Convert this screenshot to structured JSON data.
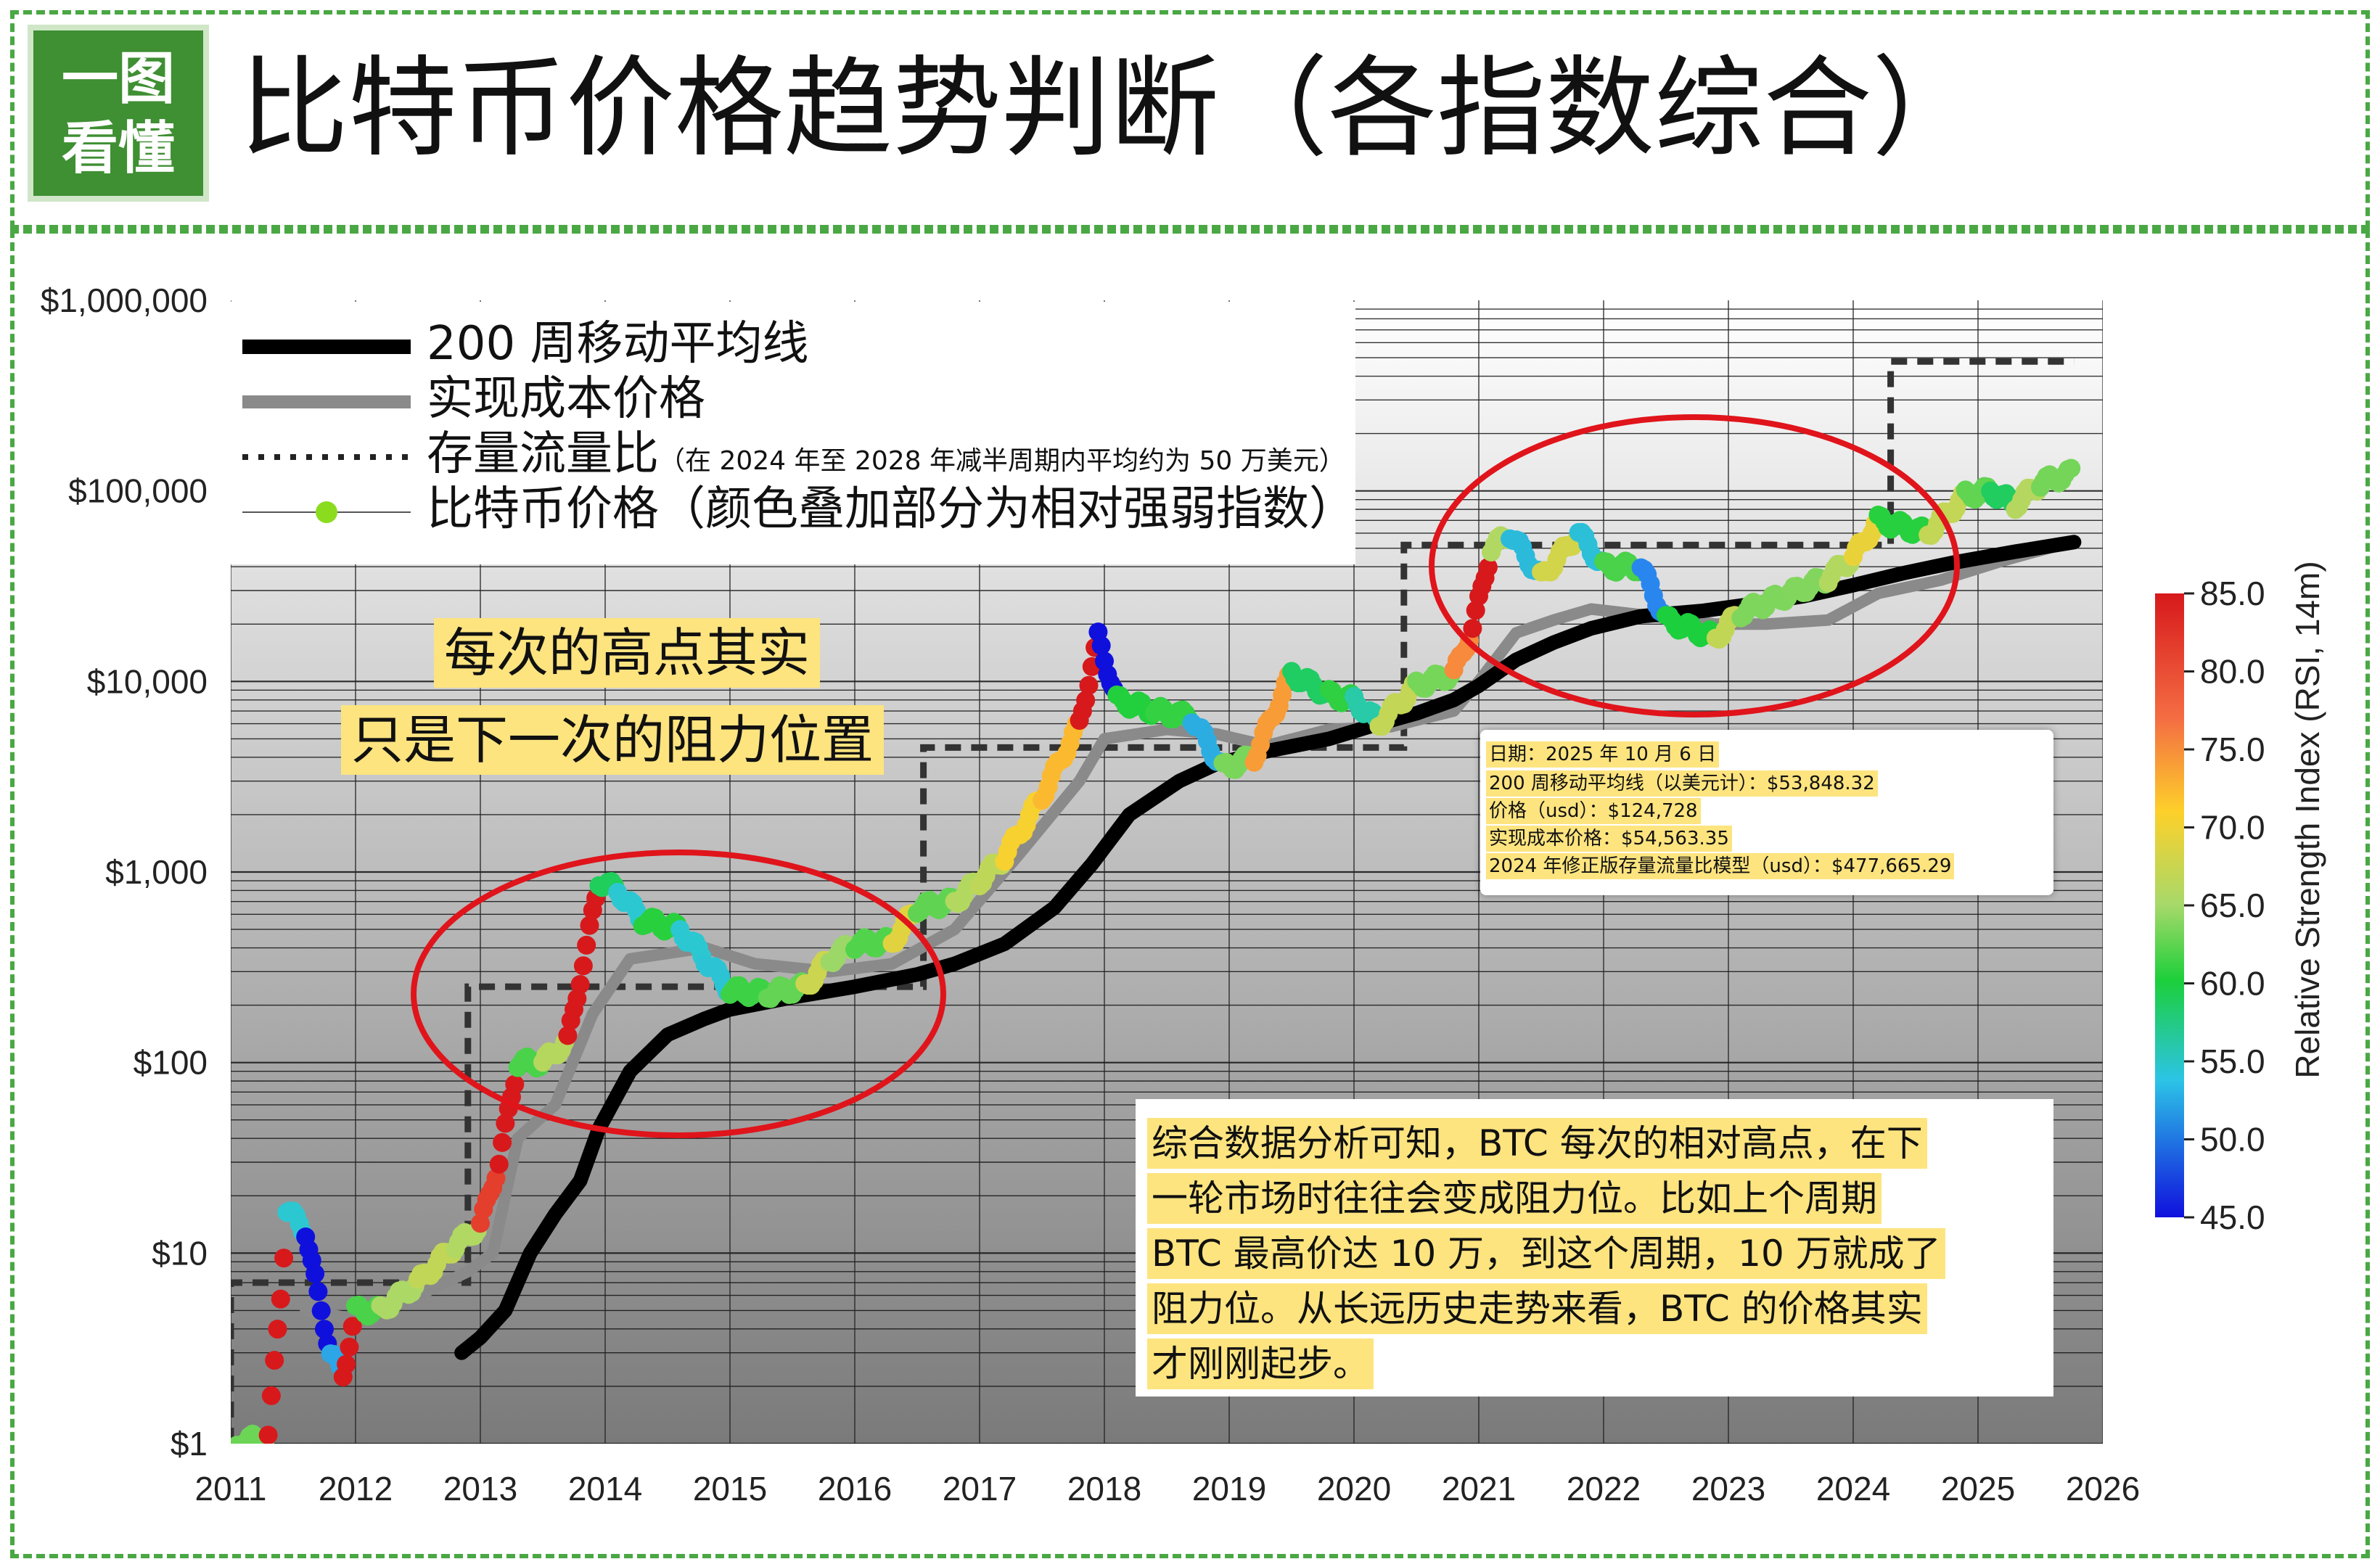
{
  "logo": {
    "line1": "一图",
    "line2": "看懂"
  },
  "header": {
    "title": "比特币价格趋势判断（各指数综合）"
  },
  "chart_data": {
    "type": "line",
    "y_scale": "log",
    "ylim": [
      1,
      1000000
    ],
    "xlim": [
      2011,
      2026
    ],
    "grid": true,
    "y_ticks": [
      {
        "v": 1,
        "label": "$1"
      },
      {
        "v": 10,
        "label": "$10"
      },
      {
        "v": 100,
        "label": "$100"
      },
      {
        "v": 1000,
        "label": "$1,000"
      },
      {
        "v": 10000,
        "label": "$10,000"
      },
      {
        "v": 100000,
        "label": "$100,000"
      },
      {
        "v": 1000000,
        "label": "$1,000,000"
      }
    ],
    "x_ticks": [
      "2011",
      "2012",
      "2013",
      "2014",
      "2015",
      "2016",
      "2017",
      "2018",
      "2019",
      "2020",
      "2021",
      "2022",
      "2023",
      "2024",
      "2025",
      "2026"
    ],
    "legend": [
      {
        "key": "ma200w",
        "label": "200 周移动平均线",
        "note": ""
      },
      {
        "key": "realized",
        "label": "实现成本价格",
        "note": ""
      },
      {
        "key": "s2f",
        "label": "存量流量比",
        "note": "（在 2024 年至 2028 年减半周期内平均约为 50 万美元）"
      },
      {
        "key": "price",
        "label": "比特币价格（颜色叠加部分为相对强弱指数）",
        "note": ""
      }
    ],
    "series": [
      {
        "name": "200 周移动平均线",
        "color": "#000000",
        "points": [
          [
            2012.85,
            3
          ],
          [
            2013.0,
            3.6
          ],
          [
            2013.2,
            5
          ],
          [
            2013.4,
            10
          ],
          [
            2013.6,
            16
          ],
          [
            2013.8,
            24
          ],
          [
            2013.95,
            45
          ],
          [
            2014.2,
            90
          ],
          [
            2014.5,
            140
          ],
          [
            2014.8,
            170
          ],
          [
            2015.0,
            190
          ],
          [
            2015.5,
            220
          ],
          [
            2016.0,
            250
          ],
          [
            2016.5,
            290
          ],
          [
            2016.8,
            330
          ],
          [
            2017.2,
            420
          ],
          [
            2017.6,
            650
          ],
          [
            2017.9,
            1100
          ],
          [
            2018.2,
            2000
          ],
          [
            2018.6,
            3000
          ],
          [
            2018.9,
            3700
          ],
          [
            2019.3,
            4300
          ],
          [
            2019.8,
            5000
          ],
          [
            2020.2,
            6000
          ],
          [
            2020.5,
            6800
          ],
          [
            2020.8,
            8000
          ],
          [
            2021.0,
            9500
          ],
          [
            2021.3,
            13000
          ],
          [
            2021.6,
            16000
          ],
          [
            2021.9,
            19000
          ],
          [
            2022.3,
            22000
          ],
          [
            2022.8,
            23500
          ],
          [
            2023.2,
            25500
          ],
          [
            2023.6,
            28000
          ],
          [
            2024.0,
            32000
          ],
          [
            2024.4,
            37000
          ],
          [
            2024.8,
            42000
          ],
          [
            2025.3,
            48000
          ],
          [
            2025.77,
            53848
          ]
        ]
      },
      {
        "name": "实现成本价格",
        "color": "#8a8a8a",
        "points": [
          [
            2011.6,
            5
          ],
          [
            2012.0,
            4.5
          ],
          [
            2012.5,
            6
          ],
          [
            2012.9,
            8
          ],
          [
            2013.1,
            10
          ],
          [
            2013.3,
            40
          ],
          [
            2013.6,
            60
          ],
          [
            2013.9,
            180
          ],
          [
            2014.2,
            350
          ],
          [
            2014.8,
            400
          ],
          [
            2015.2,
            330
          ],
          [
            2015.8,
            300
          ],
          [
            2016.3,
            330
          ],
          [
            2016.8,
            500
          ],
          [
            2017.3,
            1200
          ],
          [
            2017.8,
            3000
          ],
          [
            2018.0,
            5000
          ],
          [
            2018.5,
            5600
          ],
          [
            2018.9,
            5300
          ],
          [
            2019.3,
            4600
          ],
          [
            2019.8,
            5600
          ],
          [
            2020.3,
            5800
          ],
          [
            2020.8,
            7000
          ],
          [
            2021.0,
            10000
          ],
          [
            2021.3,
            18000
          ],
          [
            2021.6,
            21000
          ],
          [
            2021.9,
            24000
          ],
          [
            2022.4,
            22000
          ],
          [
            2022.9,
            20000
          ],
          [
            2023.3,
            20000
          ],
          [
            2023.8,
            21000
          ],
          [
            2024.2,
            29000
          ],
          [
            2024.7,
            34000
          ],
          [
            2025.2,
            43000
          ],
          [
            2025.77,
            54563
          ]
        ]
      },
      {
        "name": "存量流量比",
        "color": "#333333",
        "points": [
          [
            2011.0,
            1
          ],
          [
            2011.0,
            7
          ],
          [
            2012.9,
            7
          ],
          [
            2012.9,
            250
          ],
          [
            2016.55,
            250
          ],
          [
            2016.55,
            4500
          ],
          [
            2020.4,
            4500
          ],
          [
            2020.4,
            52000
          ],
          [
            2024.3,
            52000
          ],
          [
            2024.3,
            477665
          ],
          [
            2025.77,
            477665
          ]
        ]
      },
      {
        "name": "比特币价格",
        "color_scale": "RSI 14m",
        "points": [
          [
            2011.05,
            1
          ],
          [
            2011.3,
            1.1
          ],
          [
            2011.4,
            6
          ],
          [
            2011.45,
            17
          ],
          [
            2011.6,
            13
          ],
          [
            2011.7,
            6
          ],
          [
            2011.8,
            3
          ],
          [
            2011.9,
            2.3
          ],
          [
            2012.0,
            5
          ],
          [
            2012.2,
            5
          ],
          [
            2012.5,
            7
          ],
          [
            2012.8,
            11
          ],
          [
            2013.0,
            14
          ],
          [
            2013.15,
            30
          ],
          [
            2013.3,
            100
          ],
          [
            2013.5,
            100
          ],
          [
            2013.7,
            130
          ],
          [
            2013.85,
            400
          ],
          [
            2013.95,
            900
          ],
          [
            2014.1,
            800
          ],
          [
            2014.3,
            560
          ],
          [
            2014.6,
            500
          ],
          [
            2014.8,
            350
          ],
          [
            2015.0,
            240
          ],
          [
            2015.3,
            230
          ],
          [
            2015.6,
            250
          ],
          [
            2015.8,
            350
          ],
          [
            2016.0,
            420
          ],
          [
            2016.3,
            430
          ],
          [
            2016.5,
            650
          ],
          [
            2016.8,
            700
          ],
          [
            2017.0,
            900
          ],
          [
            2017.2,
            1200
          ],
          [
            2017.5,
            2500
          ],
          [
            2017.8,
            6000
          ],
          [
            2017.95,
            17000
          ],
          [
            2018.1,
            8000
          ],
          [
            2018.4,
            7000
          ],
          [
            2018.7,
            6500
          ],
          [
            2018.95,
            3500
          ],
          [
            2019.2,
            4000
          ],
          [
            2019.5,
            11000
          ],
          [
            2019.8,
            8500
          ],
          [
            2020.0,
            8000
          ],
          [
            2020.2,
            6000
          ],
          [
            2020.5,
            9500
          ],
          [
            2020.8,
            11000
          ],
          [
            2020.95,
            19000
          ],
          [
            2021.1,
            50000
          ],
          [
            2021.25,
            60000
          ],
          [
            2021.5,
            35000
          ],
          [
            2021.8,
            60000
          ],
          [
            2022.0,
            40000
          ],
          [
            2022.3,
            40000
          ],
          [
            2022.5,
            21000
          ],
          [
            2022.9,
            17000
          ],
          [
            2023.1,
            23000
          ],
          [
            2023.5,
            29000
          ],
          [
            2023.8,
            35000
          ],
          [
            2024.0,
            45000
          ],
          [
            2024.2,
            70000
          ],
          [
            2024.6,
            60000
          ],
          [
            2024.9,
            95000
          ],
          [
            2025.1,
            100000
          ],
          [
            2025.3,
            85000
          ],
          [
            2025.5,
            110000
          ],
          [
            2025.77,
            124728
          ]
        ]
      }
    ],
    "colorbar": {
      "title": "Relative Strength Index (RSI, 14m)",
      "min": 45,
      "max": 85,
      "ticks": [
        "85.0",
        "80.0",
        "75.0",
        "70.0",
        "65.0",
        "60.0",
        "55.0",
        "50.0",
        "45.0"
      ]
    }
  },
  "annotations": {
    "highlight1": "每次的高点其实",
    "highlight2": "只是下一次的阻力位置"
  },
  "tooltip": {
    "date": "日期：2025 年 10 月 6 日",
    "ma200": "200 周移动平均线（以美元计）：$53,848.32",
    "price": "价格（usd）：$124,728",
    "realized": "实现成本价格：$54,563.35",
    "s2f": "2024 年修正版存量流量比模型（usd）：$477,665.29"
  },
  "summary": {
    "lines": [
      "综合数据分析可知，BTC 每次的相对高点，在下",
      "一轮市场时往往会变成阻力位。比如上个周期",
      "BTC 最高价达 10 万，到这个周期，10 万就成了",
      "阻力位。从长远历史走势来看，BTC 的价格其实",
      "才刚刚起步。"
    ]
  }
}
